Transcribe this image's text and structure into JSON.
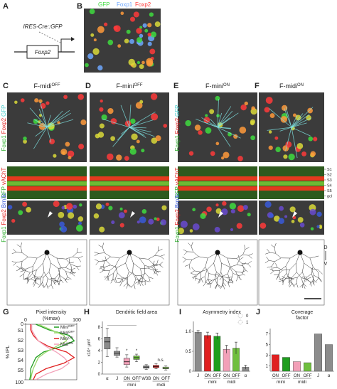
{
  "panels": {
    "A": {
      "letter": "A",
      "construct": "IRES-Cre::GFP",
      "gene": "Foxp2"
    },
    "B": {
      "letter": "B",
      "legend": [
        "GFP",
        "Foxp1",
        "Foxp2"
      ],
      "legend_colors": [
        "#3fdc3f",
        "#6fa8ff",
        "#ff3b3b"
      ]
    },
    "C": {
      "letter": "C",
      "title": "F-midi",
      "title_sup": "OFF"
    },
    "D": {
      "letter": "D",
      "title": "F-mini",
      "title_sup": "OFF"
    },
    "E": {
      "letter": "E",
      "title": "F-mini",
      "title_sup": "ON"
    },
    "F": {
      "letter": "F",
      "title": "F-midi",
      "title_sup": "ON"
    }
  },
  "row_labels": [
    [
      "Foxp1",
      "Foxp2",
      "GFP"
    ],
    [
      "GFP",
      "vAChT"
    ],
    [
      "Foxp1",
      "Foxp2",
      "Brn3c"
    ]
  ],
  "row_label_colors": [
    [
      "#2fae2f",
      "#e02020",
      "#4fd0d0"
    ],
    [
      "#2fae2f",
      "#e02020"
    ],
    [
      "#2fae2f",
      "#e02020",
      "#3a5bd9"
    ]
  ],
  "layers": [
    "S1",
    "S2",
    "S3",
    "S4",
    "S5",
    "gcl"
  ],
  "orientation": [
    "D",
    "V"
  ],
  "chart_data": [
    {
      "type": "line",
      "letter": "G",
      "title": "Pixel intensity",
      "xlabel": "(%max)",
      "ylabel": "% IPL",
      "xlim": [
        0,
        100
      ],
      "xticks": [
        0,
        100
      ],
      "ylim": [
        0,
        100
      ],
      "yticks": [
        0,
        100
      ],
      "layer_labels": [
        "S1",
        "S2",
        "S3",
        "S4",
        "S5"
      ],
      "depth": [
        0,
        10,
        20,
        30,
        40,
        50,
        60,
        70,
        80,
        90,
        100
      ],
      "series": [
        {
          "name": "Mini",
          "name_sup": "OFF",
          "color": "#1f9e1f",
          "values": [
            20,
            45,
            85,
            95,
            70,
            35,
            20,
            15,
            10,
            10,
            8
          ]
        },
        {
          "name": "Midi",
          "name_sup": "OFF",
          "color": "#9ad86a",
          "values": [
            25,
            50,
            75,
            80,
            60,
            40,
            25,
            20,
            15,
            12,
            10
          ]
        },
        {
          "name": "Mini",
          "name_sup": "ON",
          "color": "#e02020",
          "values": [
            10,
            10,
            15,
            25,
            45,
            80,
            95,
            75,
            40,
            20,
            15
          ]
        },
        {
          "name": "Midi",
          "name_sup": "ON",
          "color": "#f2a0b8",
          "values": [
            12,
            12,
            18,
            25,
            40,
            60,
            75,
            85,
            70,
            40,
            20
          ]
        }
      ]
    },
    {
      "type": "box",
      "letter": "H",
      "title": "Dendritic field area",
      "ylabel": "x10⁴ μm²",
      "ylim": [
        0,
        9
      ],
      "yticks": [
        0,
        2,
        4,
        6,
        8
      ],
      "categories": [
        "α",
        "J",
        "ON",
        "OFF",
        "W3B",
        "ON",
        "OFF"
      ],
      "groups": [
        "mini",
        "midi"
      ],
      "colors": [
        "#8c8c8c",
        "#8c8c8c",
        "#f2a0b8",
        "#6fbf3f",
        "#8c8c8c",
        "#e02020",
        "#9ad86a"
      ],
      "min": [
        3.0,
        2.9,
        1.2,
        2.1,
        0.8,
        0.9,
        0.7
      ],
      "q1": [
        4.3,
        3.2,
        1.6,
        2.5,
        1.0,
        1.1,
        0.9
      ],
      "median": [
        5.5,
        3.6,
        2.1,
        2.8,
        1.2,
        1.3,
        1.0
      ],
      "q3": [
        6.3,
        3.9,
        2.7,
        3.1,
        1.4,
        1.5,
        1.2
      ],
      "max": [
        7.8,
        4.5,
        3.3,
        3.4,
        1.6,
        1.8,
        1.4
      ],
      "annotations": [
        "*",
        "*",
        "n.s."
      ]
    },
    {
      "type": "bar",
      "letter": "I",
      "title": "Asymmetry index",
      "ylim": [
        0,
        1.25
      ],
      "yticks": [
        0,
        0.5,
        {
          "value": 1,
          "label": "1.0"
        }
      ],
      "categories": [
        "J",
        "ON",
        "OFF",
        "ON",
        "OFF",
        "α"
      ],
      "groups": [
        "mini",
        "midi"
      ],
      "colors": [
        "#8c8c8c",
        "#e02020",
        "#1f9e1f",
        "#f2a0b8",
        "#6fbf3f",
        "#8c8c8c"
      ],
      "values": [
        0.98,
        0.9,
        0.88,
        0.55,
        0.58,
        0.1
      ],
      "errors": [
        0.04,
        0.08,
        0.08,
        0.1,
        0.15,
        0.05
      ],
      "inset_labels": [
        "0",
        "1"
      ]
    },
    {
      "type": "bar",
      "letter": "J",
      "title": [
        "Coverage",
        "factor"
      ],
      "ylim": [
        0,
        8
      ],
      "yticks": [
        1,
        3,
        5,
        7
      ],
      "categories": [
        "ON",
        "OFF",
        "ON",
        "OFF",
        "J",
        "α"
      ],
      "groups": [
        "mini",
        "midi"
      ],
      "colors": [
        "#e02020",
        "#1f9e1f",
        "#f2a0b8",
        "#6fbf3f",
        "#8c8c8c",
        "#8c8c8c"
      ],
      "values": [
        3.1,
        2.6,
        1.8,
        1.6,
        7.0,
        5.0
      ]
    }
  ]
}
